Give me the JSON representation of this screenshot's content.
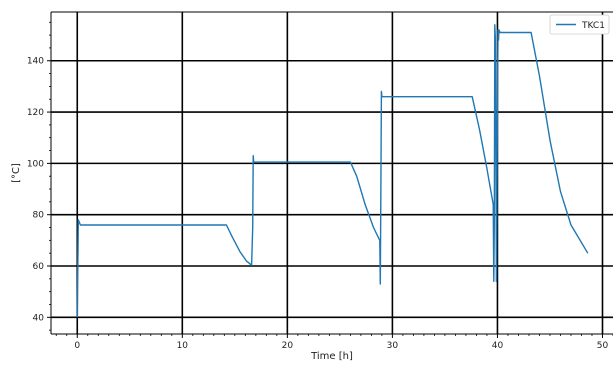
{
  "chart_data": {
    "type": "line",
    "title": "",
    "xlabel": "Time [h]",
    "ylabel": "[°C]",
    "xlim": [
      -2.5,
      51
    ],
    "ylim": [
      33.5,
      159
    ],
    "xticks": [
      0,
      10,
      20,
      30,
      40,
      50
    ],
    "yticks": [
      40,
      60,
      80,
      100,
      120,
      140
    ],
    "grid": true,
    "legend_position": "top-right",
    "series": [
      {
        "name": "TKC1",
        "color": "#1f77b4",
        "x": [
          0,
          0.1,
          0.3,
          5,
          10,
          14.2,
          14.8,
          15.5,
          16.1,
          16.6,
          16.7,
          16.75,
          16.8,
          20,
          26,
          26.6,
          27.4,
          28.2,
          28.8,
          28.85,
          28.9,
          28.95,
          29.0,
          30,
          35,
          37.6,
          38.3,
          39.0,
          39.6,
          39.65,
          39.7,
          39.75,
          39.8,
          39.85,
          39.9,
          39.95,
          40.05,
          40.1,
          40.15,
          40.25,
          40.4,
          42,
          43.2,
          44,
          45,
          46,
          47,
          48.6
        ],
        "y": [
          40,
          78,
          76,
          76,
          76,
          76,
          71,
          65.5,
          62,
          60.3,
          75,
          103,
          100.5,
          100.5,
          100.5,
          95,
          84,
          75,
          70,
          53,
          85,
          128,
          126,
          126,
          126,
          126,
          113,
          98,
          84,
          54,
          75,
          154,
          149,
          108,
          54,
          90,
          152,
          148,
          152,
          151,
          151,
          151,
          151,
          134,
          109,
          89,
          76,
          65
        ]
      }
    ]
  }
}
